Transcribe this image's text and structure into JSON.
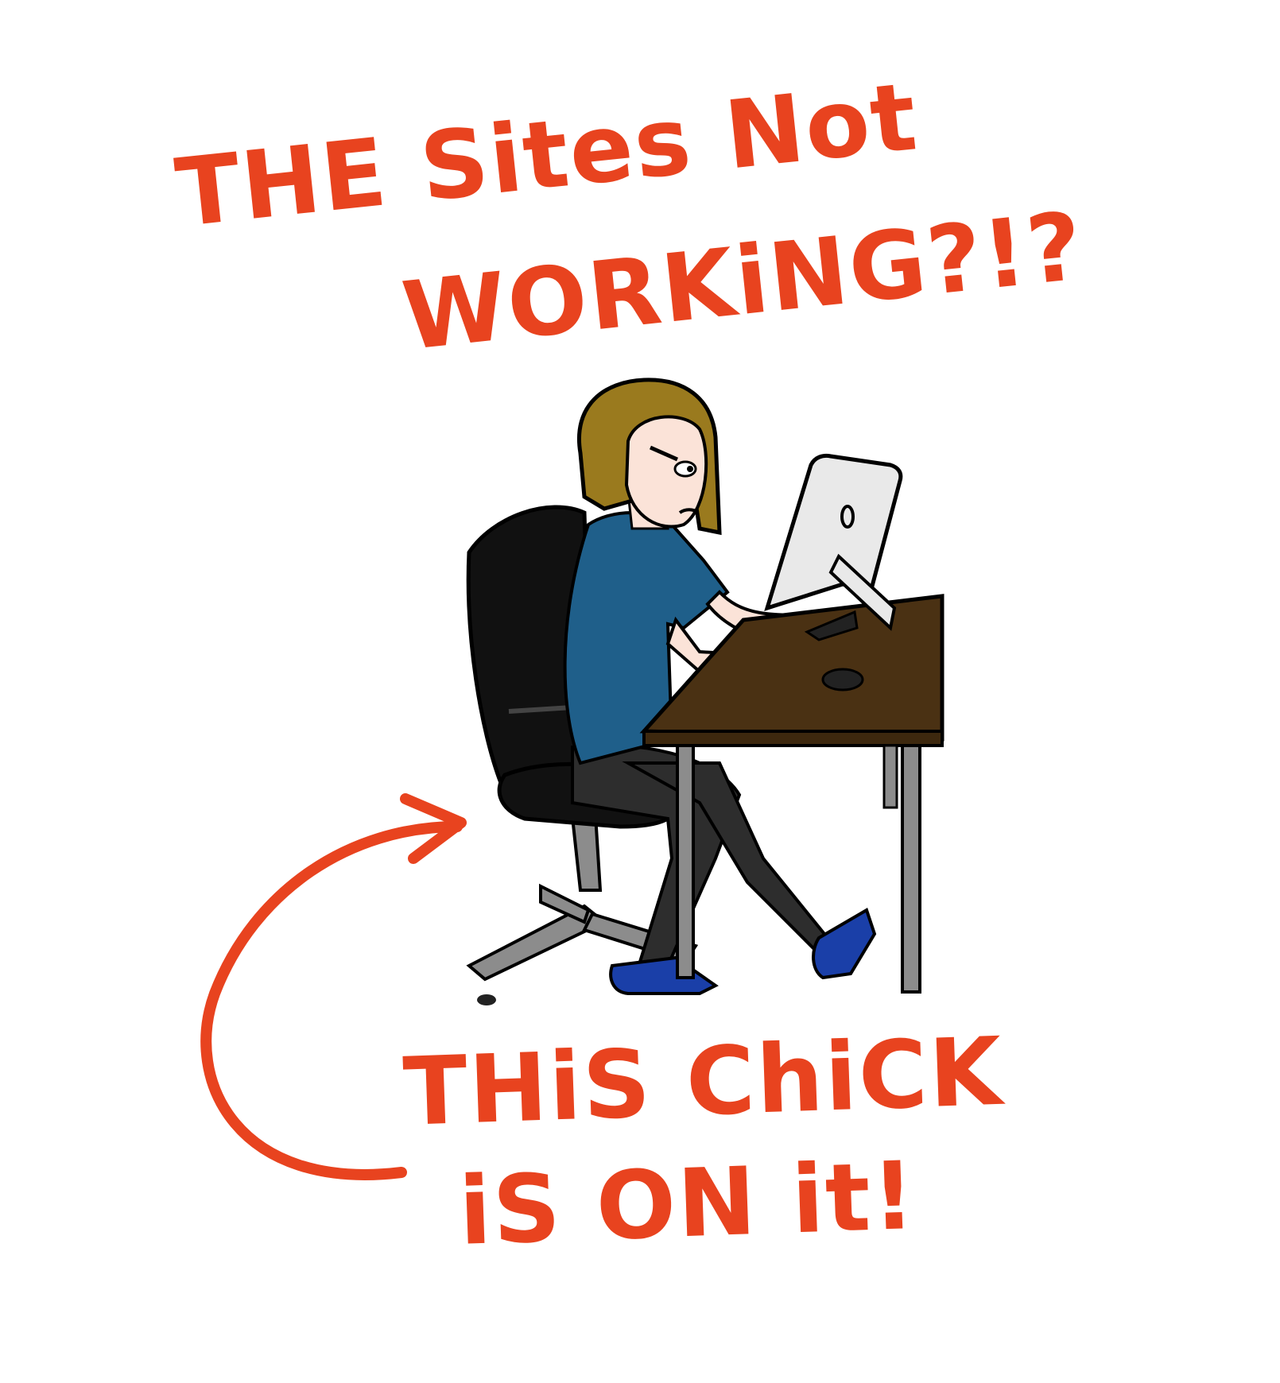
{
  "headline": {
    "line1": "THE Sites Not",
    "line2": "WORKiNG?!?"
  },
  "caption": {
    "line1": "THiS ChiCK",
    "line2": "iS ON it!"
  },
  "colors": {
    "lettering": "#e8431f",
    "hair": "#9a7a1e",
    "shirt": "#1f5f8a",
    "pants": "#2d2d2d",
    "chair": "#111111",
    "chair_base": "#8c8c8c",
    "desk_top": "#4a3113",
    "desk_legs": "#8c8c8c",
    "monitor": "#e9e9e9",
    "skin": "#fbe3d8",
    "shoes": "#1a3fa8"
  },
  "illustration": {
    "icons": [
      "woman-at-computer",
      "office-chair",
      "desk",
      "monitor",
      "curved-arrow"
    ]
  }
}
